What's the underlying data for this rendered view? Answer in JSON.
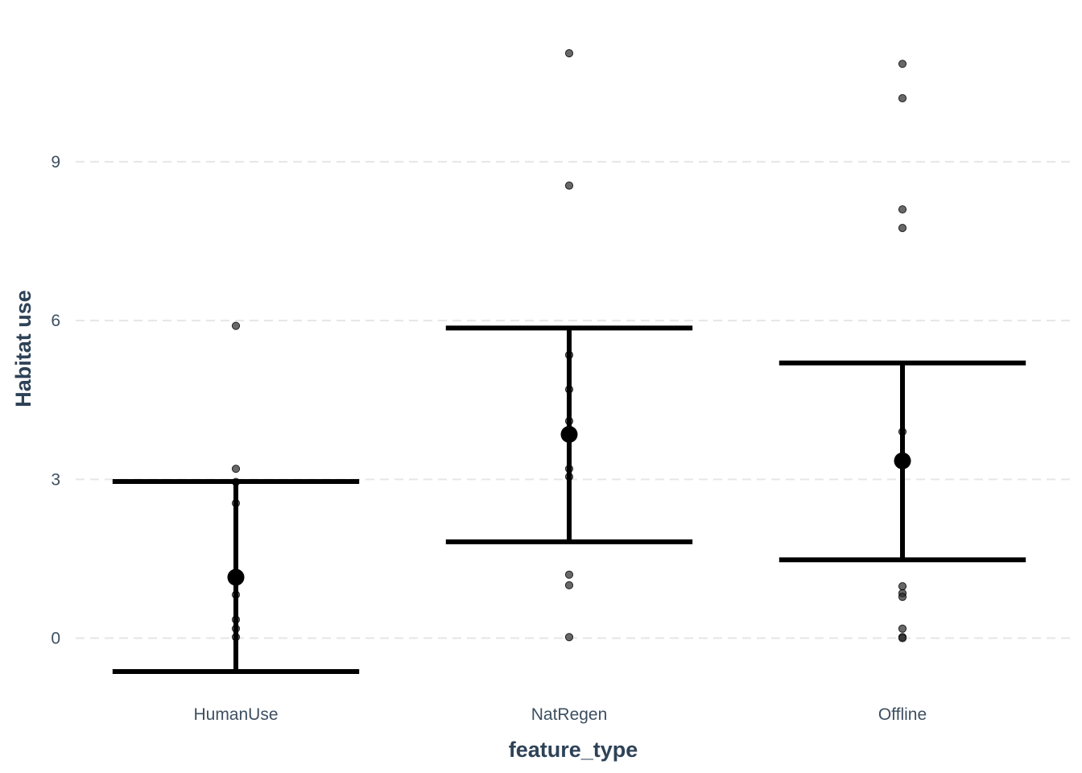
{
  "chart_data": {
    "type": "scatter",
    "xlabel": "feature_type",
    "ylabel": "Habitat use",
    "categories": [
      "HumanUse",
      "NatRegen",
      "Offline"
    ],
    "y_ticks": [
      0,
      3,
      6,
      9
    ],
    "ylim": [
      -0.95,
      11.6
    ],
    "grid": "horizontal dashed",
    "points": {
      "HumanUse": [
        5.9,
        3.2,
        2.95,
        2.55,
        0.82,
        0.35,
        0.18,
        0.02
      ],
      "NatRegen": [
        11.05,
        8.55,
        5.35,
        4.7,
        4.1,
        3.2,
        3.05,
        1.2,
        1.0,
        0.02
      ],
      "Offline": [
        10.85,
        10.2,
        8.1,
        7.75,
        3.9,
        0.98,
        0.85,
        0.78,
        0.18,
        0.02,
        0.0
      ]
    },
    "summary": [
      {
        "category": "HumanUse",
        "mean": 1.15,
        "lower": -0.63,
        "upper": 2.96
      },
      {
        "category": "NatRegen",
        "mean": 3.85,
        "lower": 1.82,
        "upper": 5.86
      },
      {
        "category": "Offline",
        "mean": 3.35,
        "lower": 1.48,
        "upper": 5.2
      }
    ]
  }
}
